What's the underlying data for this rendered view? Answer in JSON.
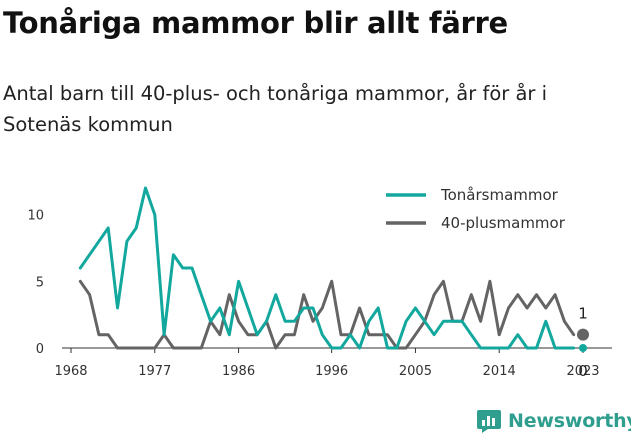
{
  "title": "Tonåriga mammor blir allt färre",
  "subtitle": "Antal barn till 40-plus- och tonåriga mammor, år för år i Sotenäs kommun",
  "brand": {
    "name": "Newsworthy",
    "logo_icon": "newsworthy-logo-icon"
  },
  "chart_data": {
    "type": "line",
    "x_ticks": [
      "1968",
      "1977",
      "1986",
      "1996",
      "2005",
      "2014",
      "2023"
    ],
    "y_ticks": [
      "0",
      "5",
      "10"
    ],
    "xlim": [
      1968,
      2023
    ],
    "ylim": [
      0,
      12
    ],
    "grid": false,
    "legend_position": "top-right",
    "x": [
      1969,
      1970,
      1971,
      1972,
      1973,
      1974,
      1975,
      1976,
      1977,
      1978,
      1979,
      1980,
      1981,
      1982,
      1983,
      1984,
      1985,
      1986,
      1987,
      1988,
      1989,
      1990,
      1991,
      1992,
      1993,
      1994,
      1995,
      1996,
      1997,
      1998,
      1999,
      2000,
      2001,
      2002,
      2003,
      2004,
      2005,
      2006,
      2007,
      2008,
      2009,
      2010,
      2011,
      2012,
      2013,
      2014,
      2015,
      2016,
      2017,
      2018,
      2019,
      2020,
      2021,
      2022
    ],
    "series": [
      {
        "name": "Tonårsmammor",
        "color": "#13a89e",
        "values": [
          6,
          7,
          8,
          9,
          3,
          8,
          9,
          12,
          10,
          1,
          7,
          6,
          6,
          4,
          2,
          3,
          1,
          5,
          3,
          1,
          2,
          4,
          2,
          2,
          3,
          3,
          1,
          0,
          0,
          1,
          0,
          2,
          3,
          0,
          0,
          2,
          3,
          2,
          1,
          2,
          2,
          2,
          1,
          0,
          0,
          0,
          0,
          1,
          0,
          0,
          2,
          0,
          0,
          0
        ]
      },
      {
        "name": "40-plusmammor",
        "color": "#646464",
        "values": [
          5,
          4,
          1,
          1,
          0,
          0,
          0,
          0,
          0,
          1,
          0,
          0,
          0,
          0,
          2,
          1,
          4,
          2,
          1,
          1,
          2,
          0,
          1,
          1,
          4,
          2,
          3,
          5,
          1,
          1,
          3,
          1,
          1,
          1,
          0,
          0,
          1,
          2,
          4,
          5,
          2,
          2,
          4,
          2,
          5,
          1,
          3,
          4,
          3,
          4,
          3,
          4,
          2,
          1
        ]
      }
    ],
    "end_labels": [
      {
        "series": "40-plusmammor",
        "x": 2023,
        "value": 1,
        "text": "1"
      },
      {
        "series": "Tonårsmammor",
        "x": 2023,
        "value": 0,
        "text": "0"
      }
    ]
  }
}
